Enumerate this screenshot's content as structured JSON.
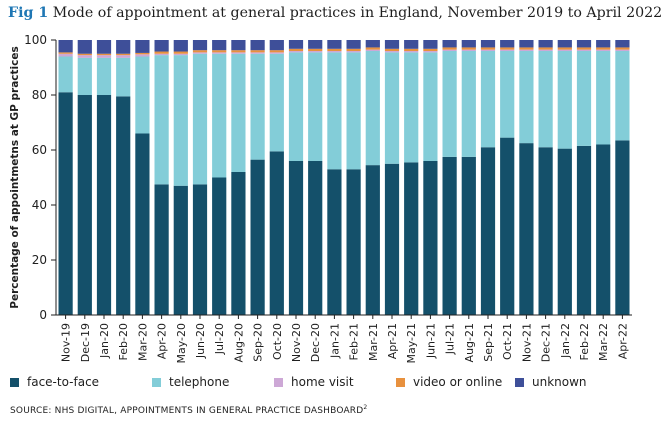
{
  "figure": {
    "label": "Fig 1",
    "title": "Mode of appointment at general practices in England, November 2019 to April 2022",
    "source": "SOURCE: NHS DIGITAL, APPOINTMENTS IN GENERAL PRACTICE DASHBOARD",
    "source_ref": "2"
  },
  "colors": {
    "face_to_face": "#14506a",
    "telephone": "#83cdd8",
    "home_visit": "#cda8d6",
    "video_or_online": "#e8913e",
    "unknown": "#3e4f99",
    "text": "#1f1f1f",
    "title_accent": "#1f77b4"
  },
  "legend": [
    {
      "key": "face_to_face",
      "label": "face-to-face"
    },
    {
      "key": "telephone",
      "label": "telephone"
    },
    {
      "key": "home_visit",
      "label": "home visit"
    },
    {
      "key": "video_or_online",
      "label": "video or online"
    },
    {
      "key": "unknown",
      "label": "unknown"
    }
  ],
  "chart_data": {
    "type": "bar",
    "stacked": true,
    "title": "Mode of appointment at general practices in England, November 2019 to April 2022",
    "xlabel": "",
    "ylabel": "Percentage of appointmetns at GP practices",
    "ylim": [
      0,
      100
    ],
    "yticks": [
      0,
      20,
      40,
      60,
      80,
      100
    ],
    "grid": false,
    "legend_position": "bottom",
    "categories": [
      "Nov-19",
      "Dec-19",
      "Jan-20",
      "Feb-20",
      "Mar-20",
      "Apr-20",
      "May-20",
      "Jun-20",
      "Jul-20",
      "Aug-20",
      "Sep-20",
      "Oct-20",
      "Nov-20",
      "Dec-20",
      "Jan-21",
      "Feb-21",
      "Mar-21",
      "Apr-21",
      "May-21",
      "Jun-21",
      "Jul-21",
      "Aug-21",
      "Sep-21",
      "Oct-21",
      "Nov-21",
      "Dec-21",
      "Jan-22",
      "Feb-22",
      "Mar-22",
      "Apr-22"
    ],
    "series": [
      {
        "name": "face-to-face",
        "key": "face_to_face",
        "values": [
          81,
          80,
          80,
          79.5,
          66,
          47.5,
          47,
          47.5,
          50,
          52,
          56.5,
          59.5,
          56,
          56,
          53,
          53,
          54.5,
          55,
          55.5,
          56,
          57.5,
          57.5,
          61,
          64.5,
          62.5,
          61,
          60.5,
          61.5,
          62,
          63.5
        ]
      },
      {
        "name": "telephone",
        "key": "telephone",
        "values": [
          13,
          13.5,
          13.5,
          14,
          28,
          47,
          47.5,
          47.5,
          45,
          43,
          38.5,
          35.5,
          39.5,
          39.5,
          42.5,
          42.5,
          41.5,
          40.5,
          40,
          39.5,
          38.5,
          38.5,
          35,
          31.5,
          33.5,
          35,
          35.5,
          34.5,
          34,
          32.5
        ]
      },
      {
        "name": "home visit",
        "key": "home_visit",
        "values": [
          1,
          1,
          1,
          1,
          0.8,
          0.5,
          0.5,
          0.5,
          0.5,
          0.5,
          0.5,
          0.5,
          0.5,
          0.5,
          0.5,
          0.5,
          0.5,
          0.5,
          0.5,
          0.5,
          0.5,
          0.5,
          0.5,
          0.5,
          0.5,
          0.5,
          0.5,
          0.5,
          0.5,
          0.5
        ]
      },
      {
        "name": "video or online",
        "key": "video_or_online",
        "values": [
          0.5,
          0.5,
          0.5,
          0.5,
          0.5,
          0.8,
          0.8,
          0.8,
          0.8,
          0.8,
          0.8,
          0.8,
          0.8,
          0.8,
          0.8,
          0.8,
          0.8,
          0.8,
          0.8,
          0.8,
          0.8,
          0.8,
          0.8,
          0.8,
          0.8,
          0.8,
          0.8,
          0.8,
          0.8,
          0.8
        ]
      },
      {
        "name": "unknown",
        "key": "unknown",
        "values": [
          4.5,
          5,
          5,
          5,
          4.7,
          4.2,
          4.2,
          3.7,
          3.7,
          3.7,
          3.7,
          3.7,
          3.2,
          3.2,
          3.2,
          3.2,
          2.7,
          3.2,
          3.2,
          3.2,
          2.7,
          2.7,
          2.7,
          2.7,
          2.7,
          2.7,
          2.7,
          2.7,
          2.7,
          2.7
        ]
      }
    ]
  }
}
